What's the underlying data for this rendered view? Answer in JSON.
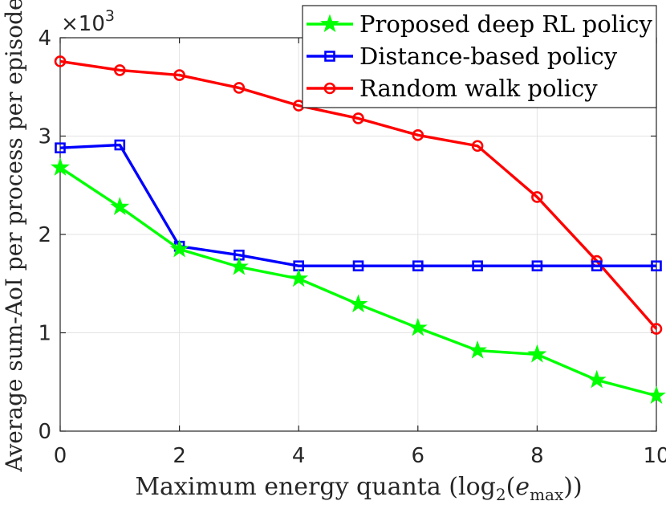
{
  "chart_data": {
    "type": "line",
    "xlabel": "Maximum energy quanta (log",
    "xlabel_sub": "2",
    "xlabel_var": "e",
    "xlabel_var_sub": "max",
    "xlabel_close": "))",
    "ylabel": "Average sum-AoI per process per episode",
    "exponent_label": "×10",
    "exponent_power": "3",
    "xlim": [
      0,
      10
    ],
    "ylim": [
      0,
      4
    ],
    "xticks": [
      0,
      2,
      4,
      6,
      8,
      10
    ],
    "xtick_labels": [
      "0",
      "2",
      "4",
      "6",
      "8",
      "10"
    ],
    "yticks": [
      0,
      1,
      2,
      3,
      4
    ],
    "ytick_labels": [
      "0",
      "1",
      "2",
      "3",
      "4"
    ],
    "grid": true,
    "legend_position": "top-right",
    "x": [
      0,
      1,
      2,
      3,
      4,
      5,
      6,
      7,
      8,
      9,
      10
    ],
    "series": [
      {
        "name": "Proposed deep RL policy",
        "color": "#00ff00",
        "marker": "star",
        "values": [
          2.68,
          2.28,
          1.85,
          1.67,
          1.55,
          1.29,
          1.05,
          0.82,
          0.78,
          0.52,
          0.36
        ]
      },
      {
        "name": "Distance-based policy",
        "color": "#0000ff",
        "marker": "square",
        "values": [
          2.88,
          2.91,
          1.88,
          1.79,
          1.68,
          1.68,
          1.68,
          1.68,
          1.68,
          1.68,
          1.68
        ]
      },
      {
        "name": "Random walk policy",
        "color": "#ff0000",
        "marker": "circle",
        "values": [
          3.76,
          3.67,
          3.62,
          3.49,
          3.31,
          3.18,
          3.01,
          2.9,
          2.38,
          1.73,
          1.04
        ]
      }
    ]
  }
}
